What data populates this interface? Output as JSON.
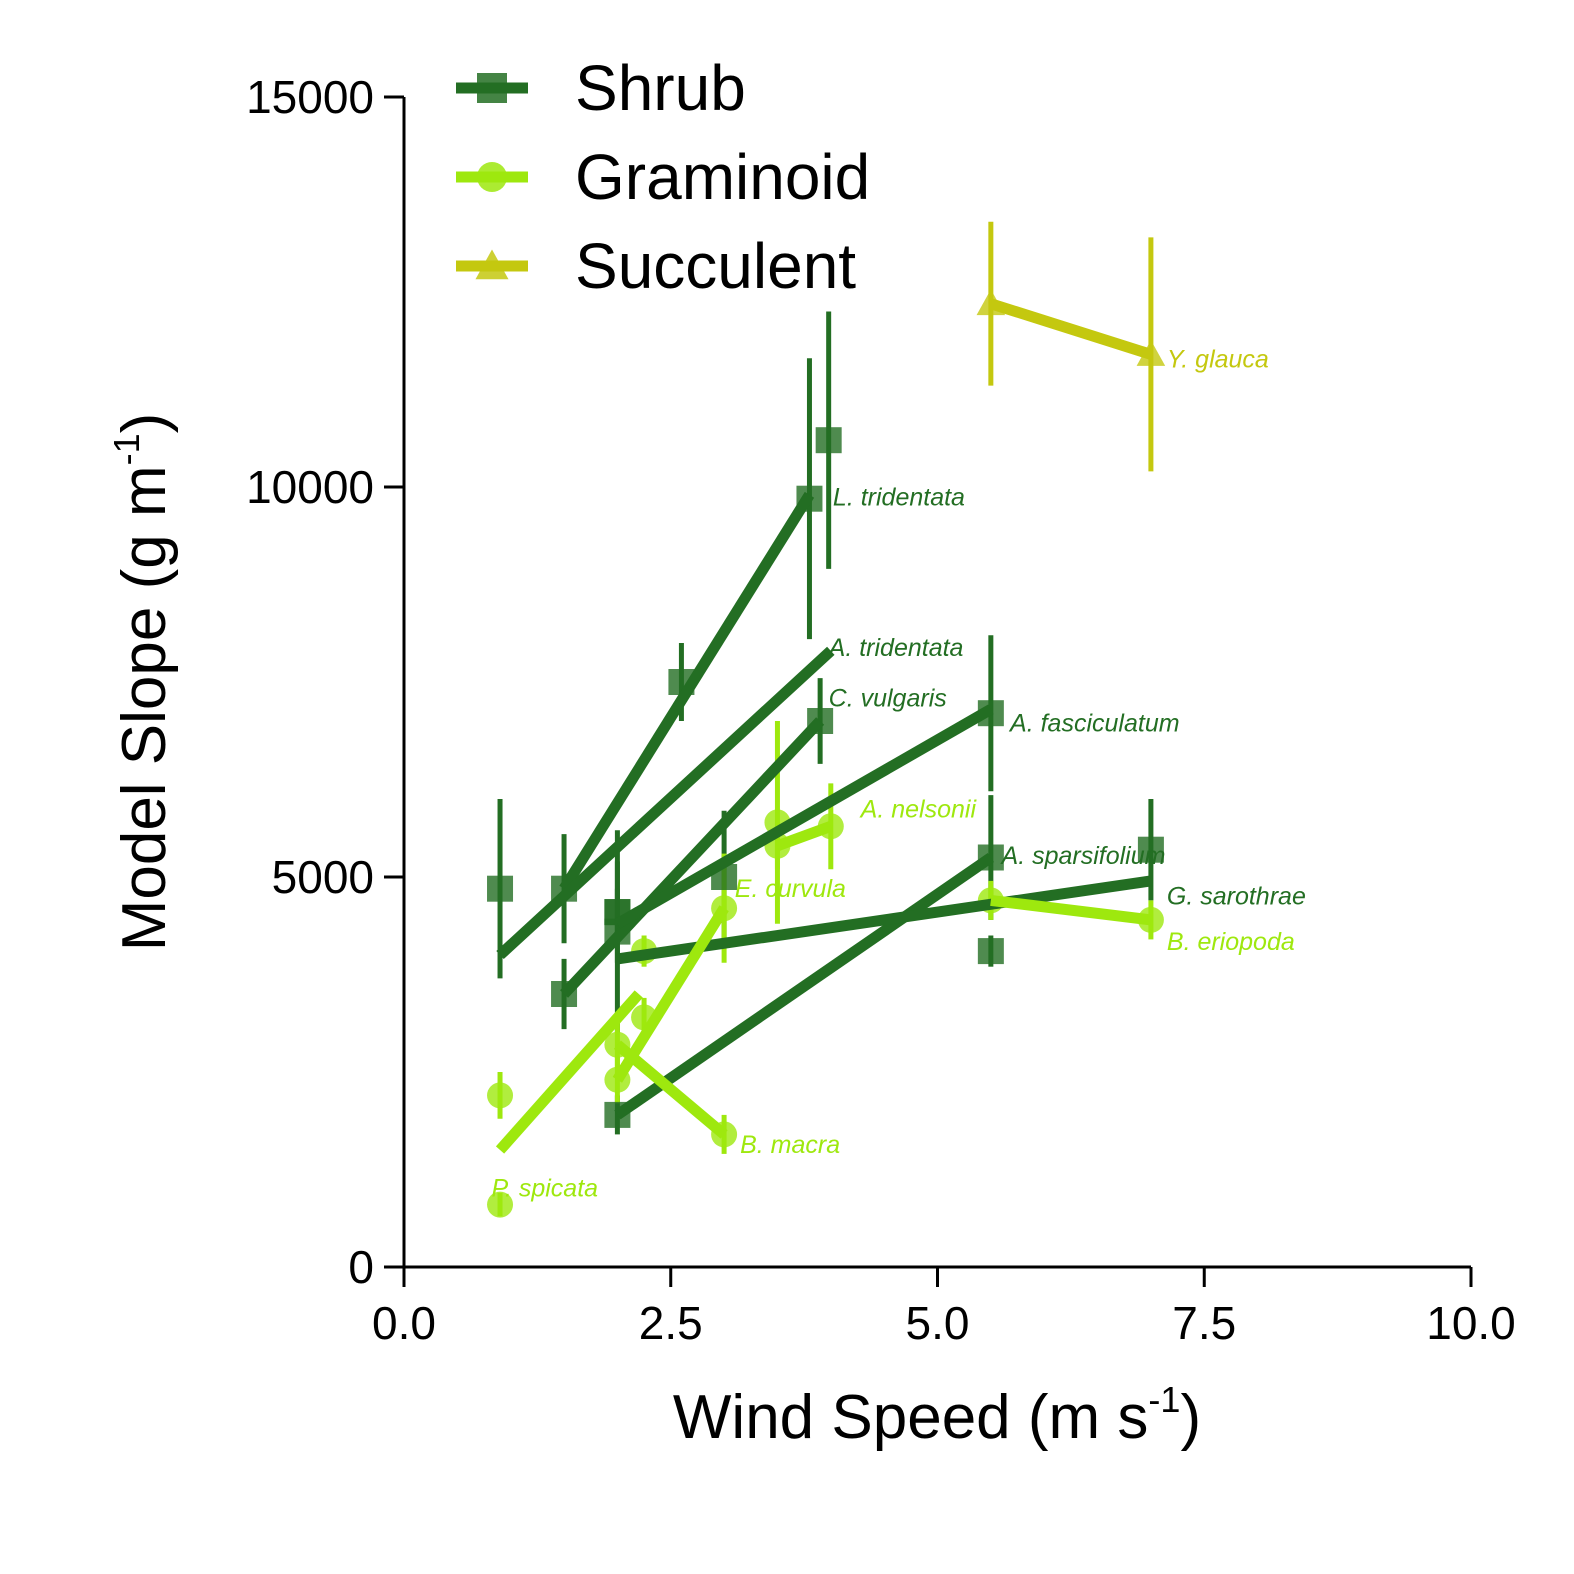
{
  "chart_data": {
    "type": "line",
    "xlabel": "Wind Speed (m s",
    "xlabel_sup": "-1",
    "xlabel_close": ")",
    "ylabel": "Model Slope (g m",
    "ylabel_sup": "-1",
    "ylabel_close": ")",
    "xlim": [
      0,
      10
    ],
    "ylim": [
      0,
      15000
    ],
    "xticks": [
      "0.0",
      "2.5",
      "5.0",
      "7.5",
      "10.0"
    ],
    "yticks": [
      "0",
      "5000",
      "10000",
      "15000"
    ],
    "grid": false,
    "legend_position": "top-left",
    "groups": [
      {
        "name": "Shrub",
        "color": "#236e23",
        "marker": "square"
      },
      {
        "name": "Graminoid",
        "color": "#9ee80e",
        "marker": "circle"
      },
      {
        "name": "Succulent",
        "color": "#c4c80f",
        "marker": "triangle"
      }
    ],
    "species": [
      {
        "name": "L. tridentata",
        "group": "Shrub",
        "points": [
          {
            "x": 1.5,
            "y": 4850,
            "err": 700
          },
          {
            "x": 2.6,
            "y": 7500,
            "err": 500
          },
          {
            "x": 3.8,
            "y": 9850,
            "err": 1800
          },
          {
            "x": 3.98,
            "y": 10600,
            "err": 1650
          }
        ],
        "fit": [
          [
            1.5,
            4850
          ],
          [
            3.8,
            9900
          ]
        ]
      },
      {
        "name": "A. tridentata",
        "group": "Shrub",
        "points": [
          {
            "x": 0.9,
            "y": 4850,
            "err": 1150
          }
        ],
        "fit": [
          [
            0.9,
            4000
          ],
          [
            4.0,
            7900
          ]
        ]
      },
      {
        "name": "C. vulgaris",
        "group": "Shrub",
        "points": [
          {
            "x": 1.5,
            "y": 3500,
            "err": 450
          },
          {
            "x": 2.0,
            "y": 4550,
            "err": 650
          },
          {
            "x": 3.9,
            "y": 7000,
            "err": 550
          }
        ],
        "fit": [
          [
            1.5,
            3500
          ],
          [
            3.9,
            7000
          ]
        ]
      },
      {
        "name": "A. fasciculatum",
        "group": "Shrub",
        "points": [
          {
            "x": 2.0,
            "y": 4300,
            "err": 1300
          },
          {
            "x": 3.0,
            "y": 5000,
            "err": 850
          },
          {
            "x": 5.5,
            "y": 7100,
            "err": 1000
          }
        ],
        "fit": [
          [
            2.0,
            4400
          ],
          [
            5.5,
            7150
          ]
        ]
      },
      {
        "name": "A. sparsifolium",
        "group": "Shrub",
        "points": [
          {
            "x": 2.0,
            "y": 1950,
            "err": 250
          },
          {
            "x": 5.5,
            "y": 5250,
            "err": 800
          }
        ],
        "fit": [
          [
            2.0,
            1950
          ],
          [
            5.5,
            5250
          ]
        ]
      },
      {
        "name": "G. sarothrae",
        "group": "Shrub",
        "points": [
          {
            "x": 2.0,
            "y": 4550,
            "err": 300
          },
          {
            "x": 5.5,
            "y": 4050,
            "err": 200
          },
          {
            "x": 7.0,
            "y": 5350,
            "err": 650
          }
        ],
        "fit": [
          [
            2.0,
            3950
          ],
          [
            7.0,
            4950
          ]
        ]
      },
      {
        "name": "A. nelsonii",
        "group": "Graminoid",
        "points": [
          {
            "x": 3.5,
            "y": 5700,
            "err": 1300
          },
          {
            "x": 4.0,
            "y": 5650,
            "err": 550
          }
        ],
        "fit": [
          [
            3.5,
            5400
          ],
          [
            4.0,
            5650
          ]
        ]
      },
      {
        "name": "E. curvula",
        "group": "Graminoid",
        "points": [
          {
            "x": 2.0,
            "y": 2400,
            "err": 300
          },
          {
            "x": 2.25,
            "y": 3200,
            "err": 250
          },
          {
            "x": 3.0,
            "y": 4600,
            "err": 700
          }
        ],
        "fit": [
          [
            2.0,
            2400
          ],
          [
            3.0,
            4600
          ]
        ]
      },
      {
        "name": "B. macra",
        "group": "Graminoid",
        "points": [
          {
            "x": 2.0,
            "y": 2850,
            "err": 300
          },
          {
            "x": 2.25,
            "y": 4050,
            "err": 200
          },
          {
            "x": 3.0,
            "y": 1700,
            "err": 250
          }
        ],
        "fit": [
          [
            2.0,
            2850
          ],
          [
            3.0,
            1700
          ]
        ]
      },
      {
        "name": "P. spicata",
        "group": "Graminoid",
        "points": [
          {
            "x": 0.9,
            "y": 2200,
            "err": 300
          },
          {
            "x": 0.9,
            "y": 800,
            "err": 150
          },
          {
            "x": 3.5,
            "y": 5400,
            "err": 300
          }
        ],
        "fit": [
          [
            0.9,
            1500
          ],
          [
            2.2,
            3500
          ]
        ]
      },
      {
        "name": "B. eriopoda",
        "group": "Graminoid",
        "points": [
          {
            "x": 5.5,
            "y": 4700,
            "err": 250
          },
          {
            "x": 7.0,
            "y": 4450,
            "err": 250
          }
        ],
        "fit": [
          [
            5.5,
            4700
          ],
          [
            7.0,
            4450
          ]
        ]
      },
      {
        "name": "Y. glauca",
        "group": "Succulent",
        "points": [
          {
            "x": 5.5,
            "y": 12350,
            "err": 1050
          },
          {
            "x": 7.0,
            "y": 11700,
            "err": 1500
          }
        ],
        "fit": [
          [
            5.5,
            12350
          ],
          [
            7.0,
            11700
          ]
        ]
      }
    ],
    "label_anchors": [
      {
        "species": "L. tridentata",
        "x": 4.02,
        "y": 9880
      },
      {
        "species": "A. tridentata",
        "x": 3.98,
        "y": 7950
      },
      {
        "species": "C. vulgaris",
        "x": 3.98,
        "y": 7300
      },
      {
        "species": "A. fasciculatum",
        "x": 5.68,
        "y": 6980
      },
      {
        "species": "A. nelsonii",
        "x": 4.28,
        "y": 5880
      },
      {
        "species": "A. sparsifolium",
        "x": 5.6,
        "y": 5280
      },
      {
        "species": "G. sarothrae",
        "x": 7.15,
        "y": 4760
      },
      {
        "species": "E. curvula",
        "x": 3.1,
        "y": 4860
      },
      {
        "species": "B. eriopoda",
        "x": 7.15,
        "y": 4180
      },
      {
        "species": "B. macra",
        "x": 3.15,
        "y": 1580
      },
      {
        "species": "P. spicata",
        "x": 0.82,
        "y": 1020
      },
      {
        "species": "Y. glauca",
        "x": 7.15,
        "y": 11650
      }
    ]
  }
}
